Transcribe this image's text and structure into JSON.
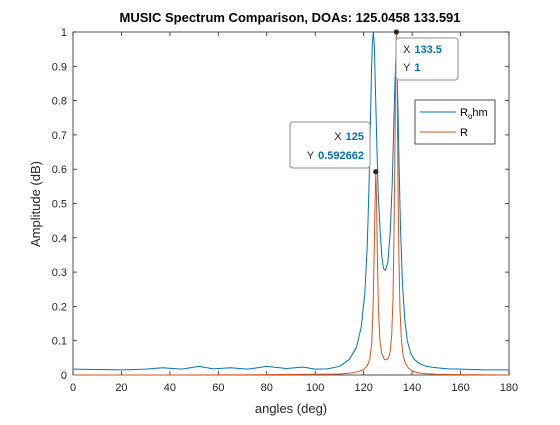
{
  "chart_data": {
    "type": "line",
    "title": "MUSIC Spectrum Comparison, DOAs:  125.0458 133.591",
    "xlabel": "angles (deg)",
    "ylabel": "Amplitude (dB)",
    "xlim": [
      0,
      180
    ],
    "ylim": [
      0,
      1
    ],
    "xticks": [
      0,
      20,
      40,
      60,
      80,
      100,
      120,
      140,
      160,
      180
    ],
    "yticks": [
      0,
      0.1,
      0.2,
      0.3,
      0.4,
      0.5,
      0.6,
      0.7,
      0.8,
      0.9,
      1
    ],
    "xtick_labels": [
      "0",
      "20",
      "40",
      "60",
      "80",
      "100",
      "120",
      "140",
      "160",
      "180"
    ],
    "ytick_labels": [
      "0",
      "0.1",
      "0.2",
      "0.3",
      "0.4",
      "0.5",
      "0.6",
      "0.7",
      "0.8",
      "0.9",
      "1"
    ],
    "grid": false,
    "legend_position": "top-right",
    "series": [
      {
        "name": "Rohm",
        "legend_main": "R",
        "legend_sub": "o",
        "legend_suffix": "hm",
        "color": "#0072BD",
        "x": [
          0,
          10,
          20,
          30,
          37,
          45,
          52,
          58,
          65,
          72,
          80,
          88,
          95,
          100,
          105,
          110,
          114,
          117,
          119,
          120.5,
          121.5,
          122.2,
          122.8,
          123.2,
          123.6,
          124,
          124.4,
          124.8,
          125.4,
          126,
          126.8,
          127.5,
          128.2,
          129,
          130,
          131,
          131.8,
          132.4,
          132.9,
          133.3,
          133.7,
          134.1,
          134.6,
          135.2,
          136,
          137,
          138,
          139.5,
          141,
          143,
          146,
          150,
          155,
          160,
          165,
          170,
          175,
          180
        ],
        "y": [
          0.017,
          0.016,
          0.015,
          0.017,
          0.021,
          0.017,
          0.025,
          0.018,
          0.021,
          0.017,
          0.025,
          0.019,
          0.023,
          0.017,
          0.018,
          0.025,
          0.045,
          0.08,
          0.14,
          0.24,
          0.38,
          0.55,
          0.74,
          0.88,
          0.97,
          1.0,
          0.96,
          0.85,
          0.68,
          0.53,
          0.42,
          0.345,
          0.31,
          0.305,
          0.33,
          0.42,
          0.56,
          0.72,
          0.85,
          0.92,
          0.9,
          0.8,
          0.62,
          0.43,
          0.27,
          0.16,
          0.1,
          0.062,
          0.045,
          0.033,
          0.025,
          0.021,
          0.018,
          0.017,
          0.016,
          0.015,
          0.015,
          0.015
        ]
      },
      {
        "name": "R",
        "legend_main": "R",
        "color": "#D95319",
        "x": [
          0,
          40,
          80,
          100,
          110,
          115,
          118,
          120,
          121.5,
          122.5,
          123.3,
          123.9,
          124.3,
          124.7,
          125,
          125.3,
          125.7,
          126.1,
          126.7,
          127.5,
          128.5,
          129.5,
          130.3,
          131,
          131.6,
          132.1,
          132.5,
          132.9,
          133.2,
          133.5,
          133.8,
          134.1,
          134.5,
          135,
          135.6,
          136.3,
          137.2,
          138.5,
          140,
          142,
          145,
          150,
          160,
          180
        ],
        "y": [
          0.0,
          0.0,
          0.001,
          0.002,
          0.003,
          0.006,
          0.01,
          0.016,
          0.027,
          0.045,
          0.09,
          0.2,
          0.34,
          0.5,
          0.593,
          0.52,
          0.33,
          0.19,
          0.1,
          0.062,
          0.046,
          0.044,
          0.05,
          0.07,
          0.12,
          0.22,
          0.4,
          0.65,
          0.88,
          1.0,
          0.87,
          0.62,
          0.36,
          0.19,
          0.1,
          0.058,
          0.034,
          0.02,
          0.012,
          0.007,
          0.004,
          0.002,
          0.001,
          0.0
        ]
      }
    ],
    "datatips": [
      {
        "x": 125,
        "y": 0.592662,
        "x_prefix": "X",
        "y_prefix": "Y",
        "x_text": "125",
        "y_text": "0.592662",
        "align": "left"
      },
      {
        "x": 133.5,
        "y": 1,
        "x_prefix": "X",
        "y_prefix": "Y",
        "x_text": "133.5",
        "y_text": "1",
        "align": "right"
      }
    ]
  },
  "colors": {
    "axis": "#262626",
    "datatip_value": "#0072BD",
    "datatip_border": "#8c8c8c",
    "marker": "#262626"
  }
}
